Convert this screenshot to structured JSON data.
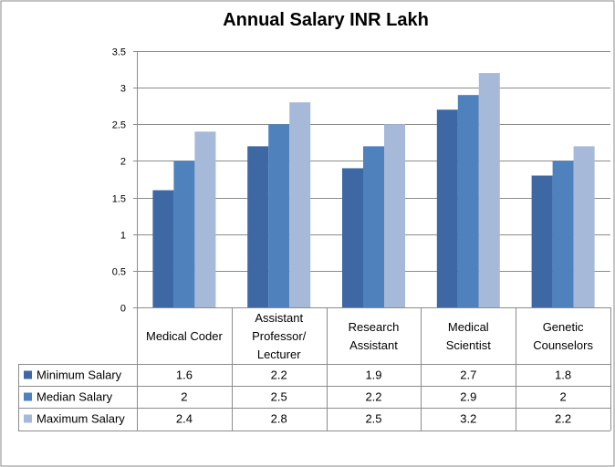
{
  "chart_data": {
    "type": "bar",
    "title": "Annual Salary INR Lakh",
    "categories": [
      [
        "Medical Coder"
      ],
      [
        "Assistant",
        "Professor/",
        "Lecturer"
      ],
      [
        "Research",
        "Assistant"
      ],
      [
        "Medical",
        "Scientist"
      ],
      [
        "Genetic",
        "Counselors"
      ]
    ],
    "series": [
      {
        "name": "Minimum Salary",
        "color": "#3D68A3",
        "values": [
          1.6,
          2.2,
          1.9,
          2.7,
          1.8
        ],
        "labels": [
          "1.6",
          "2.2",
          "1.9",
          "2.7",
          "1.8"
        ]
      },
      {
        "name": "Median Salary",
        "color": "#4F81BD",
        "values": [
          2,
          2.5,
          2.2,
          2.9,
          2
        ],
        "labels": [
          "2",
          "2.5",
          "2.2",
          "2.9",
          "2"
        ]
      },
      {
        "name": "Maximum Salary",
        "color": "#A7B9D9",
        "values": [
          2.4,
          2.8,
          2.5,
          3.2,
          2.2
        ],
        "labels": [
          "2.4",
          "2.8",
          "2.5",
          "3.2",
          "2.2"
        ]
      }
    ],
    "ylim": [
      0,
      3.5
    ],
    "yticks": [
      "0",
      "0.5",
      "1",
      "1.5",
      "2",
      "2.5",
      "3",
      "3.5"
    ],
    "ytick_values": [
      0,
      0.5,
      1,
      1.5,
      2,
      2.5,
      3,
      3.5
    ],
    "grid": true,
    "data_table": true,
    "xlabel": "",
    "ylabel": ""
  }
}
